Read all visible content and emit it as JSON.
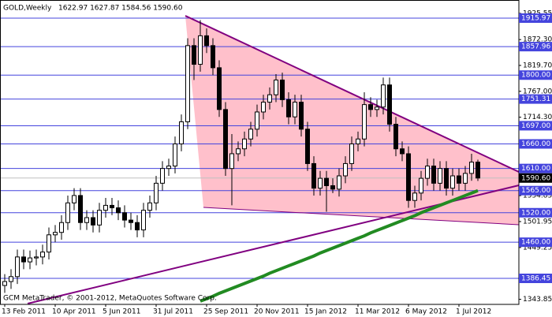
{
  "chart_data": {
    "type": "candlestick",
    "title": "GOLD,Weekly",
    "subtitle": "1622.97 1627.87 1584.56 1590.60",
    "annotation": "GCM MetaTrader, © 2001-2012, MetaQuotes Software Corp.",
    "categories": [
      "13 Feb 2011",
      null,
      null,
      null,
      null,
      null,
      null,
      null,
      "10 Apr 2011",
      null,
      null,
      null,
      null,
      null,
      null,
      null,
      "5 Jun 2011",
      null,
      null,
      null,
      null,
      null,
      null,
      null,
      "31 Jul 2011",
      null,
      null,
      null,
      null,
      null,
      null,
      null,
      "25 Sep 2011",
      null,
      null,
      null,
      null,
      null,
      null,
      null,
      "20 Nov 2011",
      null,
      null,
      null,
      null,
      null,
      null,
      null,
      "15 Jan 2012",
      null,
      null,
      null,
      null,
      null,
      null,
      null,
      "11 Mar 2012",
      null,
      null,
      null,
      null,
      null,
      null,
      null,
      "6 May 2012",
      null,
      null,
      null,
      null,
      null,
      null,
      null,
      "1 Jul 2012",
      null,
      null,
      null
    ],
    "open": [
      1372,
      1380,
      1390,
      1430,
      1420,
      1428,
      1430,
      1440,
      1475,
      1480,
      1500,
      1540,
      1555,
      1500,
      1510,
      1495,
      1525,
      1535,
      1530,
      1520,
      1505,
      1500,
      1485,
      1525,
      1540,
      1580,
      1610,
      1615,
      1660,
      1705,
      1860,
      1822,
      1880,
      1860,
      1815,
      1730,
      1610,
      1640,
      1650,
      1670,
      1690,
      1725,
      1745,
      1760,
      1790,
      1750,
      1715,
      1745,
      1690,
      1620,
      1570,
      1590,
      1575,
      1568,
      1595,
      1620,
      1660,
      1670,
      1740,
      1730,
      1735,
      1780,
      1700,
      1650,
      1640,
      1545,
      1560,
      1590,
      1615,
      1580,
      1610,
      1570,
      1595,
      1580,
      1600,
      1622.97
    ],
    "high": [
      1395,
      1405,
      1445,
      1445,
      1443,
      1445,
      1455,
      1490,
      1495,
      1515,
      1555,
      1570,
      1570,
      1525,
      1525,
      1540,
      1550,
      1550,
      1545,
      1535,
      1520,
      1515,
      1540,
      1555,
      1595,
      1625,
      1630,
      1675,
      1720,
      1875,
      1875,
      1912,
      1895,
      1875,
      1830,
      1745,
      1680,
      1665,
      1685,
      1705,
      1740,
      1760,
      1775,
      1802,
      1805,
      1765,
      1760,
      1760,
      1705,
      1635,
      1605,
      1605,
      1590,
      1610,
      1635,
      1675,
      1685,
      1765,
      1755,
      1750,
      1795,
      1795,
      1715,
      1665,
      1655,
      1575,
      1605,
      1630,
      1630,
      1625,
      1625,
      1610,
      1610,
      1615,
      1640,
      1627.87
    ],
    "low": [
      1357,
      1365,
      1375,
      1405,
      1405,
      1413,
      1415,
      1425,
      1460,
      1465,
      1485,
      1525,
      1485,
      1485,
      1480,
      1480,
      1510,
      1515,
      1505,
      1490,
      1485,
      1470,
      1470,
      1510,
      1525,
      1565,
      1595,
      1600,
      1645,
      1690,
      1790,
      1807,
      1845,
      1800,
      1715,
      1595,
      1535,
      1625,
      1635,
      1655,
      1675,
      1710,
      1730,
      1745,
      1735,
      1700,
      1700,
      1675,
      1605,
      1555,
      1555,
      1522,
      1560,
      1553,
      1580,
      1605,
      1645,
      1655,
      1715,
      1715,
      1720,
      1685,
      1635,
      1625,
      1530,
      1530,
      1545,
      1575,
      1565,
      1565,
      1555,
      1555,
      1565,
      1565,
      1585,
      1584.56
    ],
    "close": [
      1380,
      1390,
      1430,
      1420,
      1428,
      1430,
      1440,
      1475,
      1480,
      1500,
      1540,
      1555,
      1500,
      1510,
      1495,
      1525,
      1535,
      1530,
      1520,
      1505,
      1500,
      1485,
      1525,
      1540,
      1580,
      1610,
      1615,
      1660,
      1705,
      1860,
      1822,
      1880,
      1860,
      1815,
      1730,
      1610,
      1640,
      1650,
      1670,
      1690,
      1725,
      1745,
      1760,
      1790,
      1750,
      1715,
      1745,
      1690,
      1620,
      1570,
      1590,
      1575,
      1568,
      1595,
      1620,
      1660,
      1670,
      1740,
      1730,
      1735,
      1780,
      1700,
      1650,
      1640,
      1545,
      1560,
      1590,
      1615,
      1580,
      1610,
      1570,
      1595,
      1580,
      1600,
      1622.97,
      1590.6
    ],
    "ma": [
      null,
      null,
      null,
      null,
      null,
      null,
      null,
      null,
      null,
      null,
      null,
      null,
      null,
      null,
      null,
      null,
      null,
      null,
      null,
      null,
      null,
      null,
      null,
      null,
      null,
      null,
      null,
      null,
      null,
      null,
      null,
      1340,
      1345,
      1350,
      1356,
      1361,
      1366,
      1371,
      1376,
      1381,
      1386,
      1391,
      1397,
      1402,
      1407,
      1412,
      1417,
      1422,
      1427,
      1432,
      1438,
      1443,
      1448,
      1453,
      1458,
      1463,
      1468,
      1473,
      1479,
      1484,
      1489,
      1494,
      1499,
      1504,
      1509,
      1514,
      1520,
      1525,
      1530,
      1535,
      1540,
      1545,
      1550,
      1555,
      1560,
      1565
    ],
    "ma_color": "#228b22",
    "up_color": "#ffffff",
    "down_color": "#000000",
    "level_color": "#4444dd",
    "current_color": "#000000",
    "ylim": [
      1333.5,
      1948
    ],
    "yticks": [
      {
        "value": 1925.55,
        "label": "1925.55"
      },
      {
        "value": 1872.3,
        "label": "1872.30"
      },
      {
        "value": 1819.7,
        "label": "1819.70"
      },
      {
        "value": 1767,
        "label": "1767.00"
      },
      {
        "value": 1714.3,
        "label": "1714.30"
      },
      1554.85,
      1501.95,
      1449.25,
      1343.85
    ],
    "levels": [
      1915.97,
      1857.96,
      {
        "value": 1800,
        "label": "1800.00"
      },
      1751.31,
      {
        "value": 1697,
        "label": "1697.00"
      },
      {
        "value": 1660,
        "label": "1660.00"
      },
      {
        "value": 1610,
        "label": "1610.00"
      },
      {
        "value": 1565,
        "label": "1565.00"
      },
      {
        "value": 1520,
        "label": "1520.00"
      },
      {
        "value": 1460,
        "label": "1460.00"
      },
      1386.45
    ],
    "current": {
      "value": 1590.6,
      "label": "1590.60"
    }
  }
}
